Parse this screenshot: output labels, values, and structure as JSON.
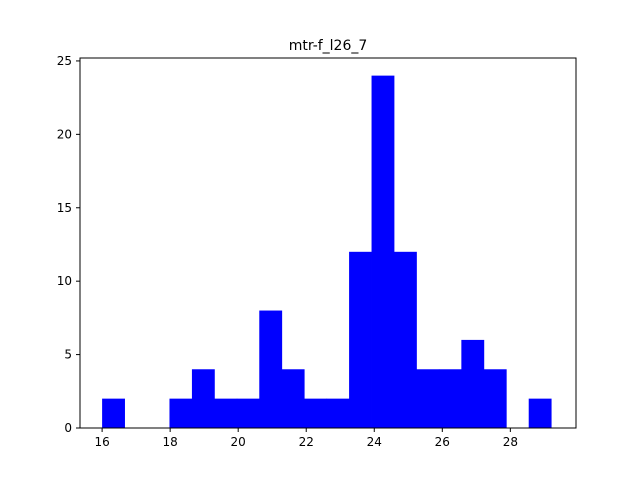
{
  "chart_data": {
    "type": "bar",
    "title": "mtr-f_l26_7",
    "xlabel": "",
    "ylabel": "",
    "bar_color": "#0000ff",
    "xlim": [
      15.35,
      29.93
    ],
    "ylim": [
      0,
      25.2
    ],
    "bin_edges": [
      16.0,
      16.66,
      17.32,
      17.98,
      18.64,
      19.3,
      19.96,
      20.62,
      21.28,
      21.94,
      22.6,
      23.26,
      23.92,
      24.58,
      25.24,
      25.9,
      26.56,
      27.22,
      27.88,
      28.54,
      29.2
    ],
    "values": [
      2,
      0,
      0,
      2,
      4,
      2,
      2,
      8,
      4,
      2,
      2,
      12,
      24,
      12,
      4,
      4,
      6,
      4,
      0,
      2
    ],
    "x_ticks": [
      16,
      18,
      20,
      22,
      24,
      26,
      28
    ],
    "y_ticks": [
      0,
      5,
      10,
      15,
      20,
      25
    ],
    "grid": false,
    "legend": "none"
  }
}
